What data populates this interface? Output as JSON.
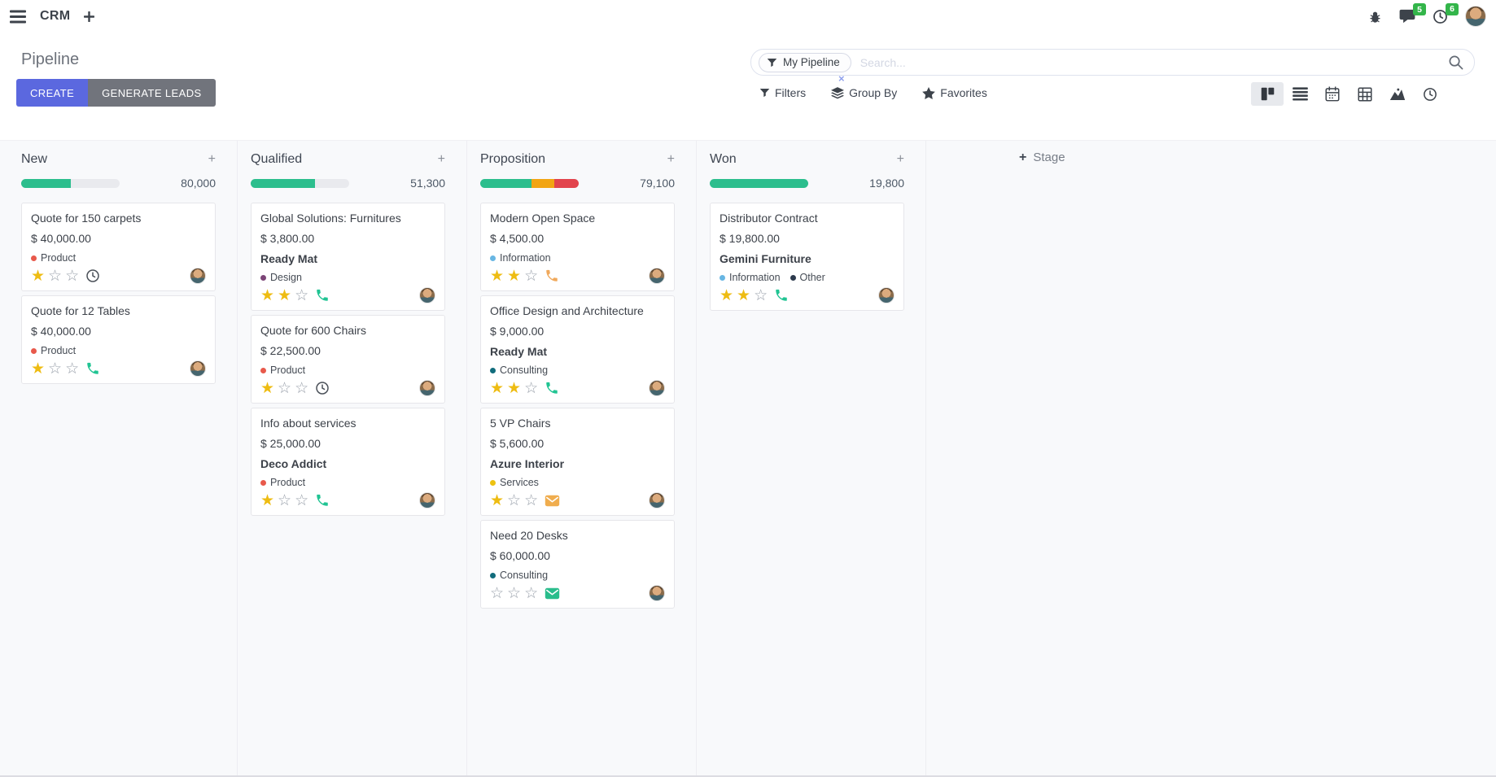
{
  "navbar": {
    "app_name": "CRM",
    "message_badge": "5",
    "activity_badge": "6"
  },
  "control_panel": {
    "title": "Pipeline",
    "create_label": "CREATE",
    "generate_leads_label": "GENERATE LEADS",
    "filters_label": "Filters",
    "group_by_label": "Group By",
    "favorites_label": "Favorites",
    "search": {
      "facet_label": "My Pipeline",
      "placeholder": "Search...",
      "facet_remove": "×"
    }
  },
  "colors": {
    "primary_button": "#5b68df",
    "secondary_button": "#71747c",
    "progress_green": "#2cbe8d",
    "progress_orange": "#f2a513",
    "progress_red": "#e2444d",
    "badge_green": "#33b54a",
    "star_gold": "#eebc12"
  },
  "kanban": {
    "add_stage_label": "Stage",
    "add_card_label": "+",
    "columns": [
      {
        "name": "New",
        "amount": "80,000",
        "progress": [
          {
            "color": "#2cbe8d",
            "pct": 50
          }
        ],
        "cards": [
          {
            "title": "Quote for 150 carpets",
            "amount": "$ 40,000.00",
            "tags": [
              {
                "label": "Product",
                "color": "#e8594b"
              }
            ],
            "stars": 1,
            "activity": {
              "icon": "clock",
              "color": "#4a5058"
            }
          },
          {
            "title": "Quote for 12 Tables",
            "amount": "$ 40,000.00",
            "tags": [
              {
                "label": "Product",
                "color": "#e8594b"
              }
            ],
            "stars": 1,
            "activity": {
              "icon": "phone",
              "color": "#21c493"
            }
          }
        ]
      },
      {
        "name": "Qualified",
        "amount": "51,300",
        "progress": [
          {
            "color": "#2cbe8d",
            "pct": 65
          }
        ],
        "cards": [
          {
            "title": "Global Solutions: Furnitures",
            "amount": "$ 3,800.00",
            "partner": "Ready Mat",
            "tags": [
              {
                "label": "Design",
                "color": "#7c4577"
              }
            ],
            "stars": 2,
            "activity": {
              "icon": "phone",
              "color": "#21c493"
            }
          },
          {
            "title": "Quote for 600 Chairs",
            "amount": "$ 22,500.00",
            "tags": [
              {
                "label": "Product",
                "color": "#e8594b"
              }
            ],
            "stars": 1,
            "activity": {
              "icon": "clock",
              "color": "#4a5058"
            }
          },
          {
            "title": "Info about services",
            "amount": "$ 25,000.00",
            "partner": "Deco Addict",
            "tags": [
              {
                "label": "Product",
                "color": "#e8594b"
              }
            ],
            "stars": 1,
            "activity": {
              "icon": "phone",
              "color": "#21c493"
            }
          }
        ]
      },
      {
        "name": "Proposition",
        "amount": "79,100",
        "progress": [
          {
            "color": "#2cbe8d",
            "pct": 52
          },
          {
            "color": "#f2a513",
            "pct": 23
          },
          {
            "color": "#e2444d",
            "pct": 25
          }
        ],
        "cards": [
          {
            "title": "Modern Open Space",
            "amount": "$ 4,500.00",
            "tags": [
              {
                "label": "Information",
                "color": "#68b6e3"
              }
            ],
            "stars": 2,
            "activity": {
              "icon": "phone",
              "color": "#f0a95c"
            }
          },
          {
            "title": "Office Design and Architecture",
            "amount": "$ 9,000.00",
            "partner": "Ready Mat",
            "tags": [
              {
                "label": "Consulting",
                "color": "#116c7c"
              }
            ],
            "stars": 2,
            "activity": {
              "icon": "phone",
              "color": "#21c493"
            }
          },
          {
            "title": "5 VP Chairs",
            "amount": "$ 5,600.00",
            "partner": "Azure Interior",
            "tags": [
              {
                "label": "Services",
                "color": "#edc211"
              }
            ],
            "stars": 1,
            "activity": {
              "icon": "mail",
              "color": "#f0ad4e"
            }
          },
          {
            "title": "Need 20 Desks",
            "amount": "$ 60,000.00",
            "tags": [
              {
                "label": "Consulting",
                "color": "#116c7c"
              }
            ],
            "stars": 0,
            "activity": {
              "icon": "mail",
              "color": "#2abd8c"
            }
          }
        ]
      },
      {
        "name": "Won",
        "amount": "19,800",
        "progress": [
          {
            "color": "#2cbe8d",
            "pct": 100
          }
        ],
        "cards": [
          {
            "title": "Distributor Contract",
            "amount": "$ 19,800.00",
            "partner": "Gemini Furniture",
            "tags": [
              {
                "label": "Information",
                "color": "#68b6e3"
              },
              {
                "label": "Other",
                "color": "#2d3a4d"
              }
            ],
            "stars": 2,
            "activity": {
              "icon": "phone",
              "color": "#21c493"
            }
          }
        ]
      }
    ]
  }
}
